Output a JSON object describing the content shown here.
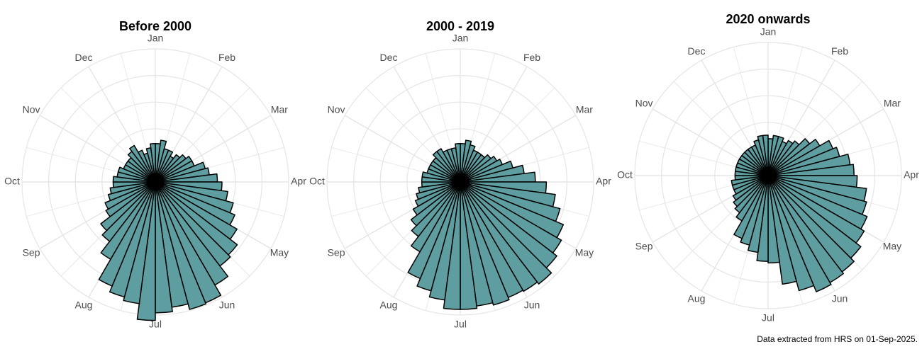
{
  "colors": {
    "bar_fill": "#5f9ea0",
    "bar_stroke": "#000000",
    "grid": "#e5e5e5",
    "label": "#4d4d4d"
  },
  "chart_data": [
    {
      "type": "bar",
      "coord": "polar",
      "title": "Before 2000",
      "month_labels": [
        "Jan",
        "Feb",
        "Mar",
        "Apr",
        "May",
        "Jun",
        "Jul",
        "Aug",
        "Sep",
        "Oct",
        "Nov",
        "Dec"
      ],
      "bins_per_month": 4,
      "rmax": 6,
      "values": [
        0.5,
        0.6,
        0.4,
        0.4,
        0.3,
        0.4,
        0.5,
        0.6,
        0.6,
        0.9,
        1,
        1.3,
        1.5,
        1.8,
        2.2,
        2.5,
        3,
        3.6,
        3.8,
        4.8,
        5.8,
        5.9,
        5.4,
        5.8,
        6.5,
        5.1,
        4.8,
        4.3,
        2.7,
        1.9,
        1.6,
        1.1,
        1,
        0.8,
        0.7,
        0.6,
        0.6,
        0.5,
        0.5,
        0.4,
        0.4,
        0.4,
        0.5,
        0.6,
        0.4,
        0.3,
        0.4,
        0.5
      ]
    },
    {
      "type": "bar",
      "coord": "polar",
      "title": "2000 - 2019",
      "month_labels": [
        "Jan",
        "Feb",
        "Mar",
        "Apr",
        "May",
        "Jun",
        "Jul",
        "Aug",
        "Sep",
        "Oct",
        "Nov",
        "Dec"
      ],
      "bins_per_month": 4,
      "rmax": 6,
      "values": [
        0.5,
        0.6,
        0.5,
        0.4,
        0.4,
        0.4,
        0.5,
        0.6,
        0.7,
        1,
        1.4,
        1.9,
        2.5,
        3.1,
        3.6,
        4.2,
        4.6,
        5,
        5.6,
        5.4,
        5.3,
        5.5,
        5.3,
        5.5,
        5.5,
        4.8,
        4.3,
        3.7,
        2.2,
        1.6,
        1.3,
        1,
        0.8,
        0.7,
        0.6,
        0.5,
        0.5,
        0.5,
        0.4,
        0.4,
        0.4,
        0.4,
        0.5,
        0.5,
        0.4,
        0.4,
        0.4,
        0.5
      ]
    },
    {
      "type": "bar",
      "coord": "polar",
      "title": "2020 onwards",
      "month_labels": [
        "Jan",
        "Feb",
        "Mar",
        "Apr",
        "May",
        "Jun",
        "Jul",
        "Aug",
        "Sep",
        "Oct",
        "Nov",
        "Dec"
      ],
      "bins_per_month": 4,
      "rmax": 6.5,
      "values": [
        0.5,
        0.6,
        0.6,
        0.5,
        0.6,
        0.7,
        1,
        1.3,
        1.8,
        2,
        2.5,
        2.7,
        2.9,
        3.6,
        3.8,
        4.2,
        4.5,
        5,
        5.4,
        5.6,
        5.8,
        5.2,
        4.4,
        2.8,
        2.7,
        2.2,
        1.9,
        1.7,
        1,
        0.8,
        0.7,
        0.6,
        0.5,
        0.5,
        0.5,
        0.4,
        0.4,
        0.4,
        0.4,
        0.4,
        0.4,
        0.4,
        0.4,
        0.4,
        0.4,
        0.5,
        0.6,
        0.6
      ]
    }
  ],
  "caption": "Data extracted from HRS on 01-Sep-2025."
}
